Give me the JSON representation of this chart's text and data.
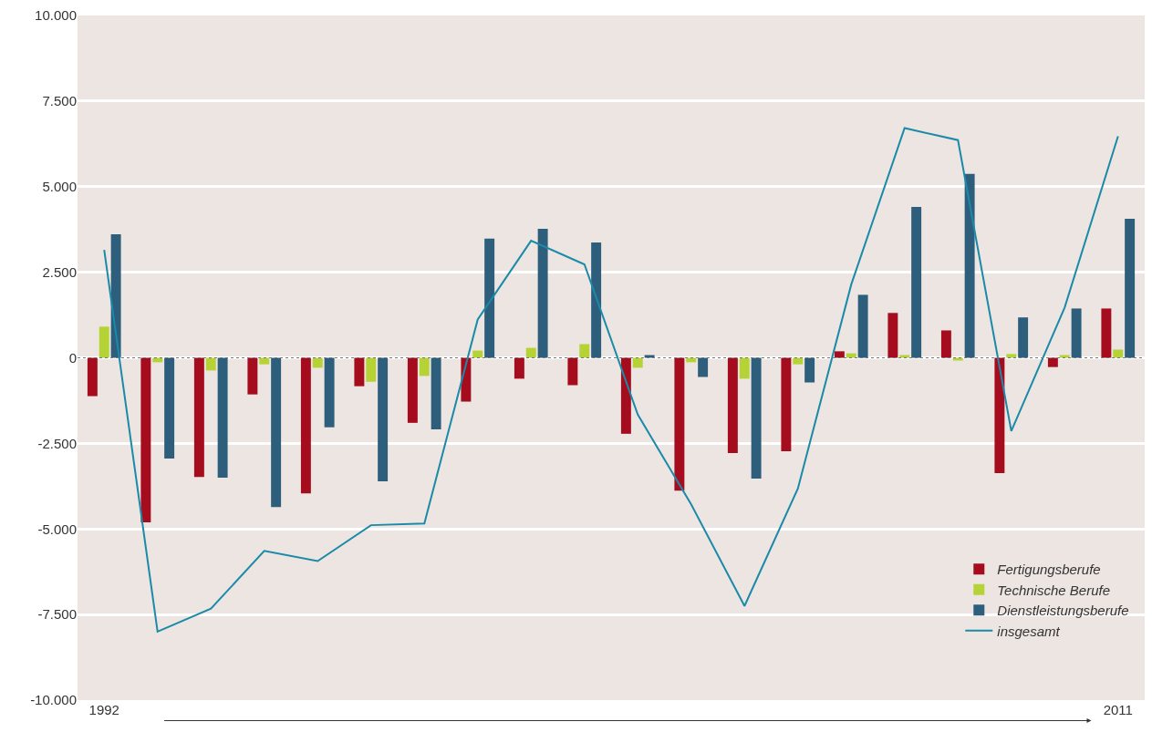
{
  "chart_data": {
    "type": "bar",
    "categories": [
      "1992",
      null,
      null,
      null,
      null,
      null,
      null,
      null,
      null,
      null,
      null,
      null,
      null,
      null,
      null,
      null,
      null,
      null,
      null,
      "2011"
    ],
    "series": [
      {
        "name": "Fertigungsberufe",
        "color": "#a50d1e",
        "values": [
          -1120,
          -4810,
          -3480,
          -1070,
          -3960,
          -830,
          -1900,
          -1280,
          -610,
          -800,
          -2220,
          -3880,
          -2780,
          -2730,
          190,
          1310,
          800,
          -3370,
          -270,
          1440
        ]
      },
      {
        "name": "Technische Berufe",
        "color": "#b5d334",
        "values": [
          910,
          -130,
          -370,
          -190,
          -290,
          -700,
          -530,
          210,
          290,
          400,
          -290,
          -130,
          -610,
          -190,
          130,
          80,
          -80,
          110,
          80,
          240
        ]
      },
      {
        "name": "Dienstleistungsberufe",
        "color": "#2d5f7c",
        "values": [
          3610,
          -2940,
          -3500,
          -4360,
          -2030,
          -3610,
          -2090,
          3480,
          3770,
          3370,
          80,
          -560,
          -3530,
          -720,
          1840,
          4410,
          5370,
          1180,
          1440,
          4060
        ]
      },
      {
        "name": "insgesamt",
        "type": "line",
        "color": "#1a8aa8",
        "marker": "none",
        "values": [
          3150,
          -8000,
          -7330,
          -5640,
          -5940,
          -4890,
          -4840,
          1120,
          3420,
          2730,
          -1660,
          -4280,
          -7250,
          -3820,
          2140,
          6710,
          6360,
          -2140,
          1470,
          6470
        ]
      }
    ],
    "ylim": [
      -10000,
      10000
    ],
    "yticks": [
      {
        "value": -10000,
        "label": "-10.000"
      },
      {
        "value": -7500,
        "label": "-7.500"
      },
      {
        "value": -5000,
        "label": "-5.000"
      },
      {
        "value": -2500,
        "label": "-2.500"
      },
      0,
      {
        "value": 2500,
        "label": "2.500"
      },
      {
        "value": 5000,
        "label": "5.000"
      },
      {
        "value": 7500,
        "label": "7.500"
      },
      {
        "value": 10000,
        "label": "10.000"
      }
    ],
    "ref_lines": [
      {
        "axis": "y",
        "value": 0,
        "color": "#777777",
        "line_style": "dotted"
      }
    ],
    "grid": "y",
    "legend": "bottom right"
  }
}
